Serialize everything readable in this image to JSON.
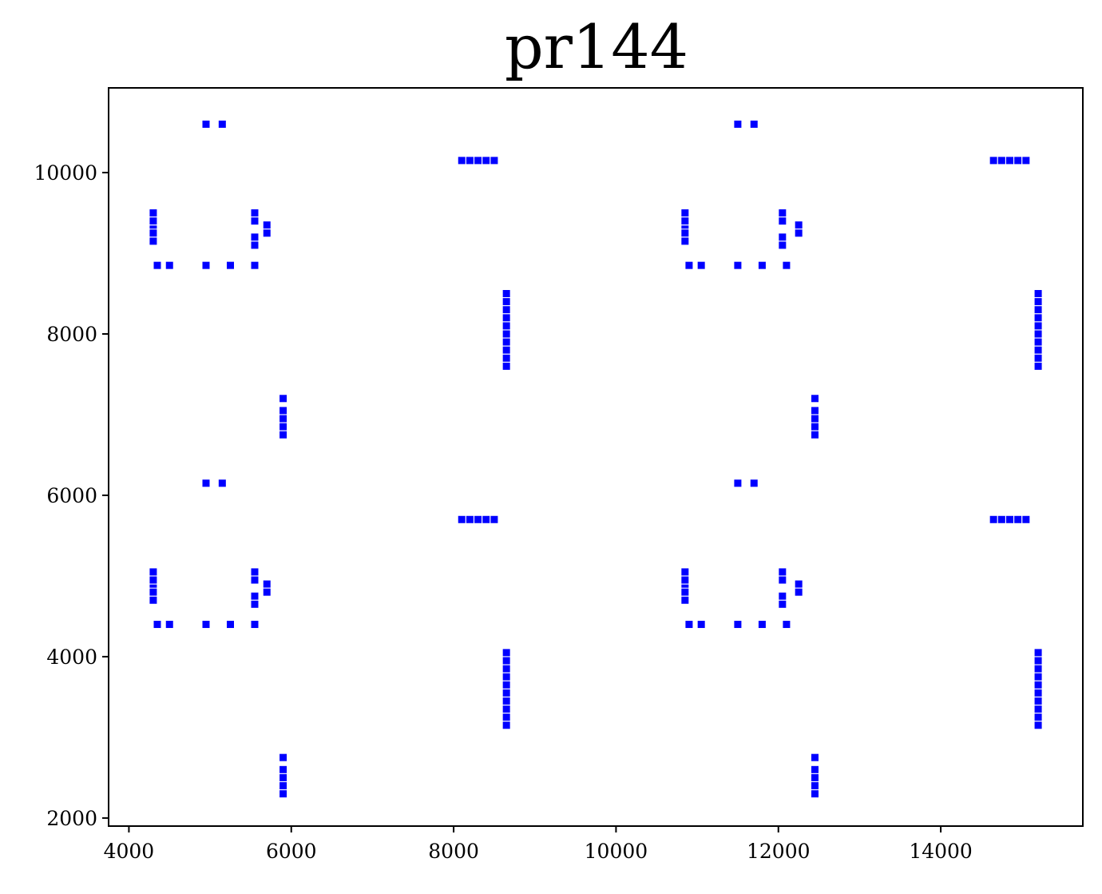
{
  "chart_data": {
    "type": "scatter",
    "title": "pr144",
    "xlabel": "",
    "ylabel": "",
    "xlim": [
      3750,
      15750
    ],
    "ylim": [
      1900,
      11050
    ],
    "xticks": [
      4000,
      6000,
      8000,
      10000,
      12000,
      14000
    ],
    "yticks": [
      2000,
      4000,
      6000,
      8000,
      10000
    ],
    "grid": false,
    "marker_color": "#0000ff",
    "series": [
      {
        "x": [
          4950,
          5150,
          8100,
          8200,
          8300,
          8400,
          8500,
          4300,
          4300,
          4300,
          4300,
          4300,
          5550,
          5550,
          5550,
          5550,
          5700,
          5700,
          4350,
          4500,
          4950,
          5250,
          5550,
          8650,
          8650,
          8650,
          8650,
          8650,
          8650,
          8650,
          8650,
          8650,
          8650,
          5900,
          5900,
          5900,
          5900,
          5900,
          4950,
          5150,
          8100,
          8200,
          8300,
          8400,
          8500,
          4300,
          4300,
          4300,
          4300,
          4300,
          5550,
          5550,
          5550,
          5550,
          5700,
          5700,
          4350,
          4500,
          4950,
          5250,
          5550,
          8650,
          8650,
          8650,
          8650,
          8650,
          8650,
          8650,
          8650,
          8650,
          8650,
          5900,
          5900,
          5900,
          5900,
          5900,
          11500,
          11700,
          14650,
          14750,
          14850,
          14950,
          15050,
          10850,
          10850,
          10850,
          10850,
          10850,
          12050,
          12050,
          12050,
          12050,
          12250,
          12250,
          10900,
          11050,
          11500,
          11800,
          12100,
          15200,
          15200,
          15200,
          15200,
          15200,
          15200,
          15200,
          15200,
          15200,
          15200,
          12450,
          12450,
          12450,
          12450,
          12450,
          11500,
          11700,
          14650,
          14750,
          14850,
          14950,
          15050,
          10850,
          10850,
          10850,
          10850,
          10850,
          12050,
          12050,
          12050,
          12050,
          12250,
          12250,
          10900,
          11050,
          11500,
          11800,
          12100,
          15200,
          15200,
          15200,
          15200,
          15200,
          15200,
          15200,
          15200,
          15200,
          15200,
          12450,
          12450,
          12450,
          12450,
          12450
        ],
        "y": [
          10600,
          10600,
          10150,
          10150,
          10150,
          10150,
          10150,
          9500,
          9400,
          9300,
          9250,
          9150,
          9500,
          9400,
          9200,
          9100,
          9350,
          9250,
          8850,
          8850,
          8850,
          8850,
          8850,
          8500,
          8400,
          8300,
          8200,
          8100,
          8000,
          7900,
          7800,
          7700,
          7600,
          7200,
          7050,
          6950,
          6850,
          6750,
          6150,
          6150,
          5700,
          5700,
          5700,
          5700,
          5700,
          5050,
          4950,
          4850,
          4800,
          4700,
          5050,
          4950,
          4750,
          4650,
          4900,
          4800,
          4400,
          4400,
          4400,
          4400,
          4400,
          4050,
          3950,
          3850,
          3750,
          3650,
          3550,
          3450,
          3350,
          3250,
          3150,
          2750,
          2600,
          2500,
          2400,
          2300,
          10600,
          10600,
          10150,
          10150,
          10150,
          10150,
          10150,
          9500,
          9400,
          9300,
          9250,
          9150,
          9500,
          9400,
          9200,
          9100,
          9350,
          9250,
          8850,
          8850,
          8850,
          8850,
          8850,
          8500,
          8400,
          8300,
          8200,
          8100,
          8000,
          7900,
          7800,
          7700,
          7600,
          7200,
          7050,
          6950,
          6850,
          6750,
          6150,
          6150,
          5700,
          5700,
          5700,
          5700,
          5700,
          5050,
          4950,
          4850,
          4800,
          4700,
          5050,
          4950,
          4750,
          4650,
          4900,
          4800,
          4400,
          4400,
          4400,
          4400,
          4400,
          4050,
          3950,
          3850,
          3750,
          3650,
          3550,
          3450,
          3350,
          3250,
          3150,
          2750,
          2600,
          2500,
          2400,
          2300
        ]
      }
    ]
  }
}
